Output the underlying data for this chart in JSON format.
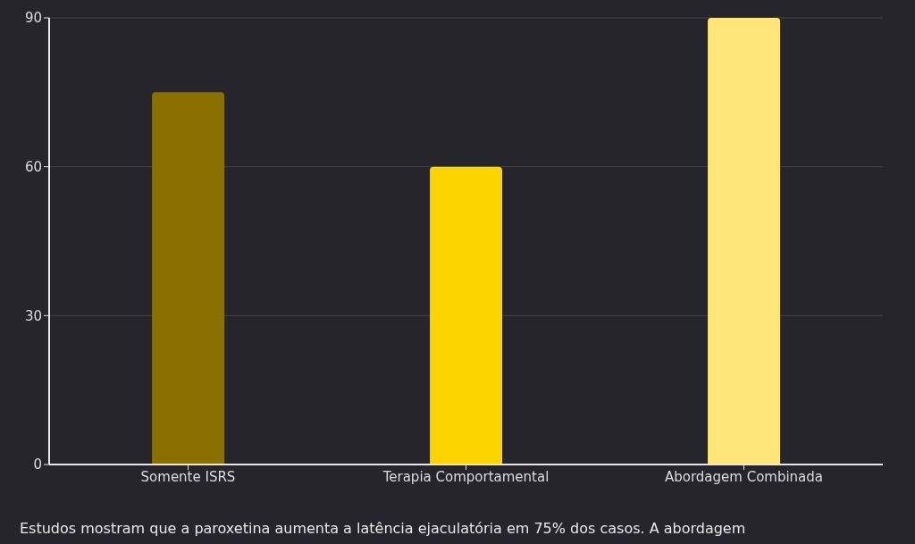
{
  "chart_data": {
    "type": "bar",
    "categories": [
      "Somente ISRS",
      "Terapia Comportamental",
      "Abordagem Combinada"
    ],
    "values": [
      75,
      60,
      90
    ],
    "colors": [
      "#8a7000",
      "#fdd400",
      "#ffe57a"
    ],
    "ylim": [
      0,
      90
    ],
    "yticks": [
      0,
      30,
      60,
      90
    ],
    "grid": "y",
    "legend": false,
    "annotations": [
      "Estudos mostram que a paroxetina aumenta a latência ejaculatória em 75% dos casos. A abordagem"
    ]
  }
}
